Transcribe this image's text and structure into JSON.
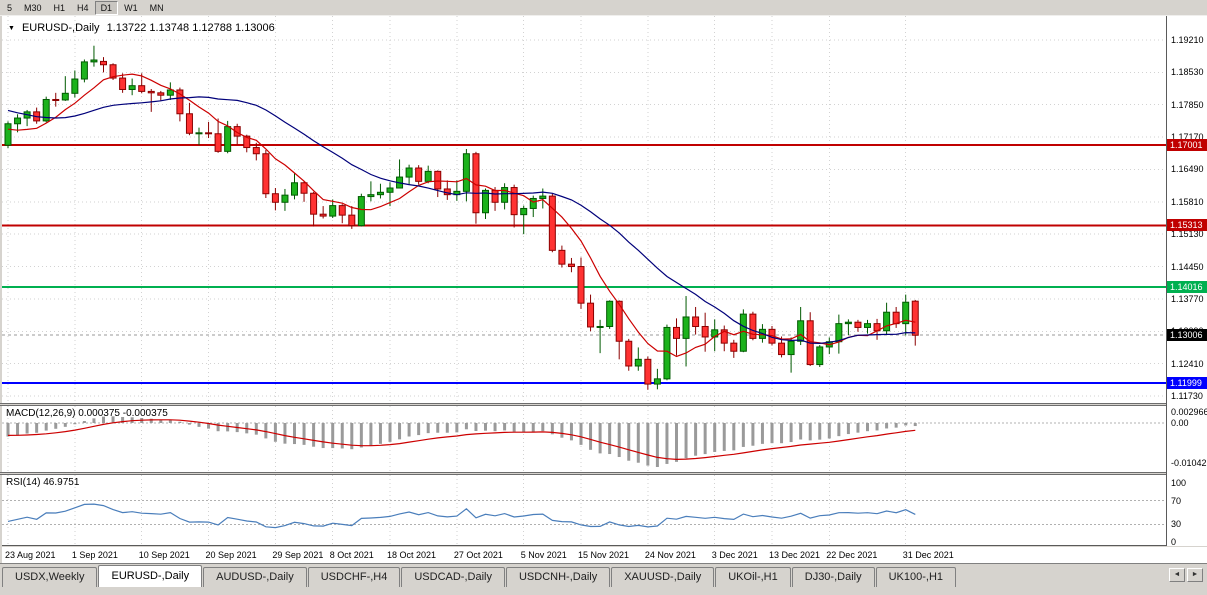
{
  "toolbar": {
    "periods": [
      {
        "label": "5",
        "active": false
      },
      {
        "label": "M30",
        "active": false
      },
      {
        "label": "H1",
        "active": false
      },
      {
        "label": "H4",
        "active": false
      },
      {
        "label": "D1",
        "active": true
      },
      {
        "label": "W1",
        "active": false
      },
      {
        "label": "MN",
        "active": false
      }
    ]
  },
  "chart": {
    "symbol_title": "EURUSD-,Daily",
    "ohlc": "1.13722 1.13748 1.12788 1.13006",
    "price_axis_labels": [
      "1.19210",
      "1.18530",
      "1.17850",
      "1.17170",
      "1.16490",
      "1.15810",
      "1.15130",
      "1.14450",
      "1.13770",
      "1.13090",
      "1.12410",
      "1.11730"
    ],
    "levels": [
      {
        "label": "1.17001",
        "value": 1.17001,
        "color": "#c00000"
      },
      {
        "label": "1.15313",
        "value": 1.15313,
        "color": "#c00000"
      },
      {
        "label": "1.14016",
        "value": 1.14016,
        "color": "#00b050"
      },
      {
        "label": "1.11999",
        "value": 1.11999,
        "color": "#0000ff"
      }
    ],
    "current_price": {
      "label": "1.13006",
      "value": 1.13006,
      "color": "#000000"
    },
    "colors": {
      "up": "#1cb21c",
      "up_border": "#005a00",
      "down": "#ff3232",
      "down_border": "#8b0000",
      "grid": "#d2d2d2",
      "macd_hist": "#9a9a9a",
      "macd_signal": "#cc0000",
      "rsi_line": "#4a7ebb",
      "level_dot": "#b0b0b0"
    }
  },
  "macd": {
    "label": "MACD(12,26,9) 0.000375 -0.000375",
    "axis_labels": [
      "0.002966",
      "0.00",
      "-0.010421"
    ]
  },
  "rsi": {
    "label": "RSI(14) 46.9751",
    "axis_labels": [
      "100",
      "70",
      "30",
      "0"
    ],
    "levels": [
      70,
      30
    ]
  },
  "time_axis": {
    "labels": [
      {
        "text": "23 Aug 2021",
        "bar": 0
      },
      {
        "text": "1 Sep 2021",
        "bar": 7
      },
      {
        "text": "10 Sep 2021",
        "bar": 14
      },
      {
        "text": "20 Sep 2021",
        "bar": 21
      },
      {
        "text": "29 Sep 2021",
        "bar": 28
      },
      {
        "text": "8 Oct 2021",
        "bar": 34
      },
      {
        "text": "18 Oct 2021",
        "bar": 40
      },
      {
        "text": "27 Oct 2021",
        "bar": 47
      },
      {
        "text": "5 Nov 2021",
        "bar": 54
      },
      {
        "text": "15 Nov 2021",
        "bar": 60
      },
      {
        "text": "24 Nov 2021",
        "bar": 67
      },
      {
        "text": "3 Dec 2021",
        "bar": 74
      },
      {
        "text": "13 Dec 2021",
        "bar": 80
      },
      {
        "text": "22 Dec 2021",
        "bar": 86
      },
      {
        "text": "31 Dec 2021",
        "bar": 94
      }
    ]
  },
  "tabs": [
    {
      "label": "USDX,Weekly",
      "active": false
    },
    {
      "label": "EURUSD-,Daily",
      "active": true
    },
    {
      "label": "AUDUSD-,Daily",
      "active": false
    },
    {
      "label": "USDCHF-,H4",
      "active": false
    },
    {
      "label": "USDCAD-,Daily",
      "active": false
    },
    {
      "label": "USDCNH-,Daily",
      "active": false
    },
    {
      "label": "XAUUSD-,Daily",
      "active": false
    },
    {
      "label": "UKOil-,H1",
      "active": false
    },
    {
      "label": "DJ30-,Daily",
      "active": false
    },
    {
      "label": "UK100-,H1",
      "active": false
    }
  ],
  "chart_data": {
    "type": "candlestick",
    "title": "EURUSD-,Daily",
    "ylim": [
      1.1173,
      1.1921
    ],
    "warmup_closes": [
      1.1868,
      1.1862,
      1.1855,
      1.1838,
      1.183,
      1.1818,
      1.1792,
      1.1768,
      1.1761,
      1.1741,
      1.1736,
      1.1752,
      1.1774,
      1.179,
      1.1781,
      1.1772,
      1.1758,
      1.1735,
      1.172,
      1.1708,
      1.1697
    ],
    "candles": [
      [
        1.17,
        1.175,
        1.1694,
        1.1745
      ],
      [
        1.1745,
        1.1765,
        1.1727,
        1.1757
      ],
      [
        1.1757,
        1.1774,
        1.174,
        1.177
      ],
      [
        1.177,
        1.1779,
        1.1745,
        1.1751
      ],
      [
        1.1751,
        1.1802,
        1.1748,
        1.1796
      ],
      [
        1.1796,
        1.181,
        1.1781,
        1.1795
      ],
      [
        1.1795,
        1.1845,
        1.1793,
        1.1809
      ],
      [
        1.1809,
        1.1857,
        1.18,
        1.1839
      ],
      [
        1.1839,
        1.188,
        1.1832,
        1.1875
      ],
      [
        1.1875,
        1.1909,
        1.1865,
        1.1879
      ],
      [
        1.1876,
        1.1885,
        1.1853,
        1.1869
      ],
      [
        1.1869,
        1.1872,
        1.1837,
        1.1841
      ],
      [
        1.1841,
        1.1851,
        1.181,
        1.1817
      ],
      [
        1.1817,
        1.184,
        1.1805,
        1.1825
      ],
      [
        1.1825,
        1.1851,
        1.1809,
        1.1813
      ],
      [
        1.1813,
        1.1818,
        1.177,
        1.181
      ],
      [
        1.181,
        1.1814,
        1.1793,
        1.1805
      ],
      [
        1.1805,
        1.1832,
        1.1795,
        1.1816
      ],
      [
        1.1816,
        1.1821,
        1.175,
        1.1766
      ],
      [
        1.1766,
        1.1789,
        1.1721,
        1.1725
      ],
      [
        1.1725,
        1.1737,
        1.17,
        1.1726
      ],
      [
        1.1726,
        1.1749,
        1.1715,
        1.1724
      ],
      [
        1.1724,
        1.1756,
        1.1684,
        1.1687
      ],
      [
        1.1687,
        1.1751,
        1.1683,
        1.1739
      ],
      [
        1.1739,
        1.1745,
        1.1701,
        1.1719
      ],
      [
        1.1719,
        1.1722,
        1.1685,
        1.1695
      ],
      [
        1.1695,
        1.1705,
        1.1668,
        1.1682
      ],
      [
        1.1682,
        1.169,
        1.1589,
        1.1598
      ],
      [
        1.1598,
        1.161,
        1.1563,
        1.158
      ],
      [
        1.158,
        1.1608,
        1.1562,
        1.1595
      ],
      [
        1.1595,
        1.1641,
        1.1586,
        1.1621
      ],
      [
        1.1621,
        1.1625,
        1.1581,
        1.1599
      ],
      [
        1.1599,
        1.1602,
        1.1529,
        1.1555
      ],
      [
        1.1555,
        1.1572,
        1.1546,
        1.1551
      ],
      [
        1.1551,
        1.1586,
        1.1547,
        1.1573
      ],
      [
        1.1573,
        1.1576,
        1.1536,
        1.1553
      ],
      [
        1.1553,
        1.1572,
        1.1524,
        1.1531
      ],
      [
        1.1531,
        1.1598,
        1.1529,
        1.1592
      ],
      [
        1.1592,
        1.1624,
        1.1582,
        1.1596
      ],
      [
        1.1596,
        1.1619,
        1.1588,
        1.1601
      ],
      [
        1.1601,
        1.1622,
        1.1572,
        1.161
      ],
      [
        1.161,
        1.167,
        1.1609,
        1.1633
      ],
      [
        1.1633,
        1.1659,
        1.1617,
        1.1652
      ],
      [
        1.1652,
        1.1658,
        1.1617,
        1.1624
      ],
      [
        1.1624,
        1.1657,
        1.162,
        1.1645
      ],
      [
        1.1645,
        1.1647,
        1.1591,
        1.1608
      ],
      [
        1.1608,
        1.1626,
        1.1585,
        1.1596
      ],
      [
        1.1596,
        1.1626,
        1.1583,
        1.1603
      ],
      [
        1.1603,
        1.1692,
        1.1582,
        1.1682
      ],
      [
        1.1682,
        1.1686,
        1.1535,
        1.1558
      ],
      [
        1.1558,
        1.1609,
        1.1545,
        1.1605
      ],
      [
        1.1605,
        1.1612,
        1.1562,
        1.158
      ],
      [
        1.158,
        1.162,
        1.1565,
        1.1611
      ],
      [
        1.1611,
        1.1617,
        1.1527,
        1.1554
      ],
      [
        1.1554,
        1.1573,
        1.1513,
        1.1567
      ],
      [
        1.1567,
        1.1594,
        1.1549,
        1.1588
      ],
      [
        1.1588,
        1.1609,
        1.1567,
        1.1593
      ],
      [
        1.1593,
        1.1598,
        1.1475,
        1.1479
      ],
      [
        1.1479,
        1.1489,
        1.1443,
        1.145
      ],
      [
        1.145,
        1.1463,
        1.1433,
        1.1445
      ],
      [
        1.1445,
        1.1464,
        1.1356,
        1.1368
      ],
      [
        1.1368,
        1.1386,
        1.1309,
        1.1318
      ],
      [
        1.1318,
        1.1333,
        1.1263,
        1.1319
      ],
      [
        1.1319,
        1.1374,
        1.1314,
        1.1372
      ],
      [
        1.1372,
        1.1374,
        1.125,
        1.1288
      ],
      [
        1.1288,
        1.1293,
        1.1226,
        1.1236
      ],
      [
        1.1236,
        1.1275,
        1.1226,
        1.125
      ],
      [
        1.125,
        1.1256,
        1.1186,
        1.1198
      ],
      [
        1.1198,
        1.123,
        1.1187,
        1.1209
      ],
      [
        1.1209,
        1.1323,
        1.1206,
        1.1317
      ],
      [
        1.1317,
        1.1336,
        1.1258,
        1.1294
      ],
      [
        1.1294,
        1.1383,
        1.1235,
        1.1339
      ],
      [
        1.1339,
        1.136,
        1.1302,
        1.1319
      ],
      [
        1.1319,
        1.1348,
        1.1266,
        1.1297
      ],
      [
        1.1297,
        1.1334,
        1.1267,
        1.1312
      ],
      [
        1.1312,
        1.1321,
        1.1267,
        1.1284
      ],
      [
        1.1284,
        1.1291,
        1.1253,
        1.1267
      ],
      [
        1.1267,
        1.1355,
        1.1265,
        1.1345
      ],
      [
        1.1345,
        1.135,
        1.129,
        1.1294
      ],
      [
        1.1294,
        1.1324,
        1.1285,
        1.1313
      ],
      [
        1.1313,
        1.132,
        1.1279,
        1.1284
      ],
      [
        1.1284,
        1.1298,
        1.1254,
        1.126
      ],
      [
        1.126,
        1.1296,
        1.1222,
        1.1288
      ],
      [
        1.1288,
        1.136,
        1.128,
        1.1331
      ],
      [
        1.1331,
        1.1349,
        1.1236,
        1.1239
      ],
      [
        1.1239,
        1.128,
        1.1234,
        1.1276
      ],
      [
        1.1276,
        1.1296,
        1.1261,
        1.1287
      ],
      [
        1.1287,
        1.1344,
        1.1262,
        1.1325
      ],
      [
        1.1325,
        1.1334,
        1.1301,
        1.1328
      ],
      [
        1.1328,
        1.1333,
        1.1308,
        1.1317
      ],
      [
        1.1317,
        1.1333,
        1.1304,
        1.1325
      ],
      [
        1.1325,
        1.1335,
        1.1291,
        1.131
      ],
      [
        1.131,
        1.1369,
        1.1303,
        1.1349
      ],
      [
        1.1349,
        1.136,
        1.1316,
        1.1325
      ],
      [
        1.1325,
        1.1386,
        1.13,
        1.137
      ],
      [
        1.13722,
        1.13748,
        1.12788,
        1.13006
      ]
    ],
    "overlays": [
      {
        "name": "ma-fast",
        "type": "sma",
        "period": 7,
        "color": "#cc0000"
      },
      {
        "name": "ma-slow",
        "type": "sma",
        "period": 21,
        "color": "#00007a"
      }
    ],
    "indicators": [
      {
        "name": "macd",
        "params": [
          12,
          26,
          9
        ]
      },
      {
        "name": "rsi",
        "params": [
          14
        ]
      }
    ]
  }
}
